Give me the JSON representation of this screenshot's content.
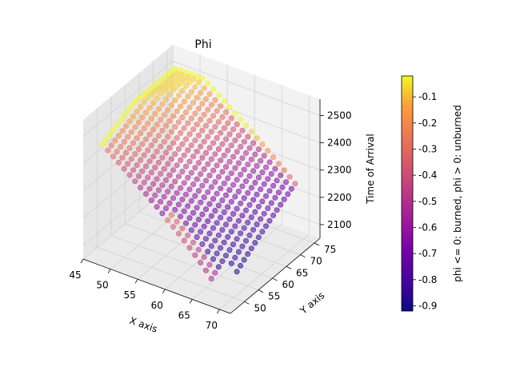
{
  "chart_data": {
    "type": "scatter3d",
    "title": "Phi",
    "xlabel": "X axis",
    "ylabel": "Y axis",
    "zlabel": "Time of Arrival",
    "xlim": [
      45,
      72
    ],
    "ylim": [
      45,
      77
    ],
    "zlim": [
      2050,
      2560
    ],
    "x_ticks": [
      "45",
      "50",
      "55",
      "60",
      "65",
      "70"
    ],
    "y_ticks": [
      "50",
      "55",
      "60",
      "65",
      "70",
      "75"
    ],
    "z_ticks": [
      "2100",
      "2200",
      "2300",
      "2400",
      "2500"
    ],
    "x_tick_values": [
      45,
      50,
      55,
      60,
      65,
      70
    ],
    "y_tick_values": [
      50,
      55,
      60,
      65,
      70,
      75
    ],
    "z_tick_values": [
      2100,
      2200,
      2300,
      2400,
      2500
    ],
    "colorbar": {
      "label": "phi <= 0: burned, phi > 0: unburned",
      "range": [
        -0.92,
        -0.02
      ],
      "ticks": [
        "-0.1",
        "-0.2",
        "-0.3",
        "-0.4",
        "-0.5",
        "-0.6",
        "-0.7",
        "-0.8",
        "-0.9"
      ],
      "tick_values": [
        -0.1,
        -0.2,
        -0.3,
        -0.4,
        -0.5,
        -0.6,
        -0.7,
        -0.8,
        -0.9
      ],
      "colormap": "plasma"
    },
    "grid": true,
    "surface": {
      "description_free": true,
      "x_range": [
        48,
        70
      ],
      "y_range": [
        46,
        72
      ],
      "z_min": 2080,
      "z_max": 2540
    }
  },
  "colors": {
    "pane": "#f2f2f2",
    "pane_side": "#e6e6e6",
    "grid": "#e0e0e0"
  }
}
